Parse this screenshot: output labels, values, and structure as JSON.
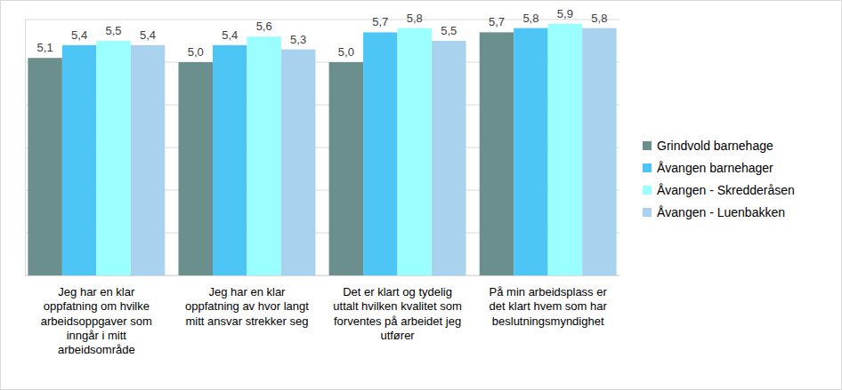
{
  "chart_data": {
    "type": "bar",
    "categories": [
      "Jeg har en klar oppfatning om hvilke arbeidsoppgaver som inngår i mitt arbeidsområde",
      "Jeg har en klar oppfatning av hvor langt mitt ansvar strekker seg",
      "Det er klart og tydelig uttalt hvilken kvalitet som forventes på arbeidet jeg utfører",
      "På min arbeidsplass er det klart hvem som har beslutningsmyndighet"
    ],
    "series": [
      {
        "name": "Grindvold barnehage",
        "color": "#6a8f8c",
        "values": [
          5.1,
          5.0,
          5.0,
          5.7
        ],
        "value_labels": [
          "5,1",
          "5,0",
          "5,0",
          "5,7"
        ]
      },
      {
        "name": "Åvangen barnehager",
        "color": "#4ec6f5",
        "values": [
          5.4,
          5.4,
          5.7,
          5.8
        ],
        "value_labels": [
          "5,4",
          "5,4",
          "5,7",
          "5,8"
        ]
      },
      {
        "name": "Åvangen - Skredderåsen",
        "color": "#9bffff",
        "values": [
          5.5,
          5.6,
          5.8,
          5.9
        ],
        "value_labels": [
          "5,5",
          "5,6",
          "5,8",
          "5,9"
        ]
      },
      {
        "name": "Åvangen - Luenbakken",
        "color": "#a9d2ee",
        "values": [
          5.4,
          5.3,
          5.5,
          5.8
        ],
        "value_labels": [
          "5,4",
          "5,3",
          "5,5",
          "5,8"
        ]
      }
    ],
    "ylim": [
      0,
      6
    ],
    "yticks": [
      0,
      1,
      2,
      3,
      4,
      5,
      6
    ],
    "grid": true,
    "legend": "right",
    "data_labels": true,
    "tick_labels": "x"
  }
}
